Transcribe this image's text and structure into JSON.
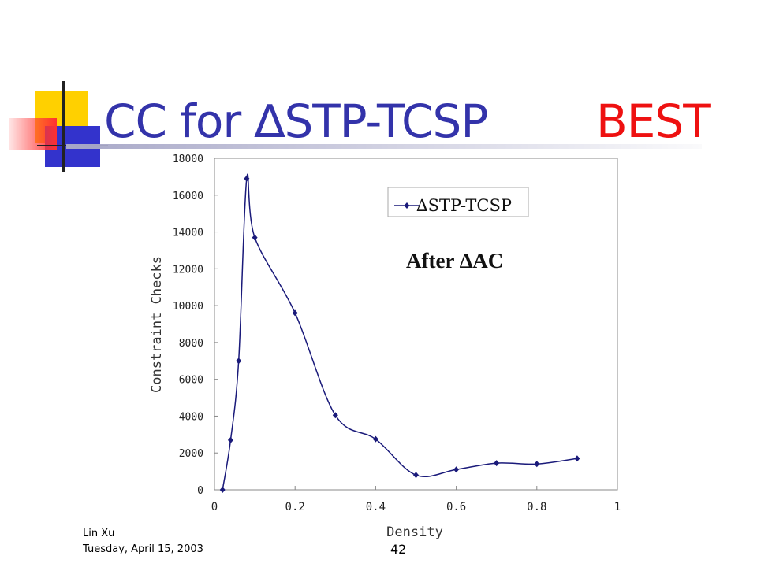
{
  "slide": {
    "title_prefix": "CC for ",
    "title_delta": "∆",
    "title_main": "STP-TCSP",
    "title_highlight": "BEST",
    "author": "Lin Xu",
    "date": "Tuesday, April 15, 2003",
    "page_number": "42"
  },
  "colors": {
    "title": "#3333aa",
    "highlight": "#ee1111",
    "series": "#1a1a7a"
  },
  "chart_data": {
    "type": "line",
    "xlabel": "Density",
    "ylabel": "Constraint Checks",
    "xlim": [
      0,
      1
    ],
    "ylim": [
      0,
      18000
    ],
    "x_ticks": [
      "0",
      "0.2",
      "0.4",
      "0.6",
      "0.8",
      "1"
    ],
    "y_ticks": [
      "0",
      "2000",
      "4000",
      "6000",
      "8000",
      "10000",
      "12000",
      "14000",
      "16000",
      "18000"
    ],
    "annotation": "After ∆AC",
    "legend_position": "top-right",
    "grid": false,
    "series": [
      {
        "name": "∆STP-TCSP",
        "x": [
          0.02,
          0.04,
          0.06,
          0.08,
          0.1,
          0.2,
          0.3,
          0.4,
          0.5,
          0.6,
          0.7,
          0.8,
          0.9
        ],
        "y": [
          0,
          2700,
          7000,
          16900,
          13700,
          9600,
          4050,
          2750,
          800,
          1100,
          1450,
          1400,
          1700
        ]
      }
    ]
  }
}
